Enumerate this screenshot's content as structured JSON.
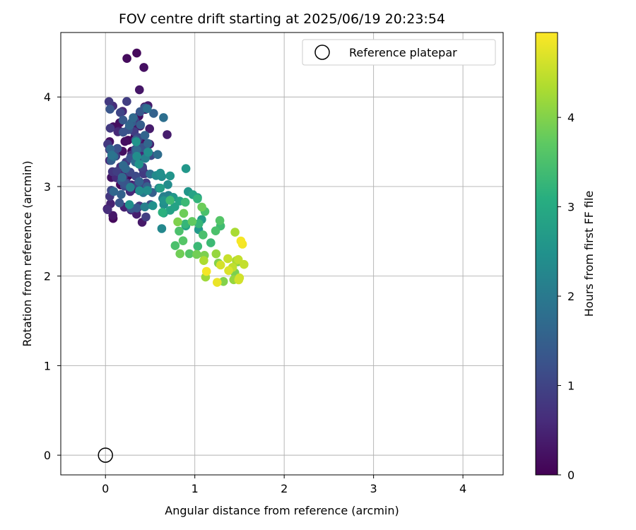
{
  "chart_data": {
    "type": "scatter",
    "title": "FOV centre drift starting at 2025/06/19 20:23:54",
    "xlabel": "Angular distance from reference (arcmin)",
    "ylabel": "Rotation from reference (arcmin)",
    "colorbar_label": "Hours from first FF file",
    "xlim": [
      -0.5,
      4.45
    ],
    "ylim": [
      -0.22,
      4.72
    ],
    "xticks": [
      0,
      1,
      2,
      3,
      4
    ],
    "yticks": [
      0,
      1,
      2,
      3,
      4
    ],
    "colorbar_range": [
      0,
      4.95
    ],
    "colorbar_ticks": [
      0,
      1,
      2,
      3,
      4
    ],
    "colormap": "viridis",
    "grid": true,
    "legend": {
      "position": "top-right",
      "entries": [
        {
          "label": "Reference platepar",
          "marker": "open-circle",
          "x": 0,
          "y": 0
        }
      ]
    }
  }
}
